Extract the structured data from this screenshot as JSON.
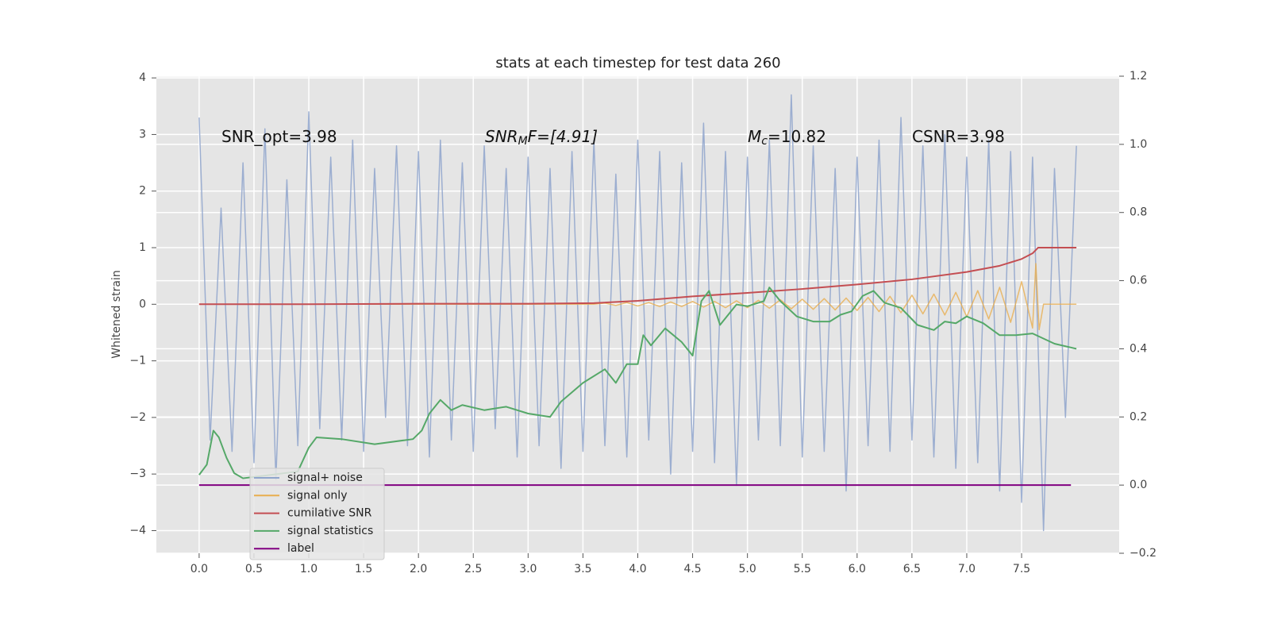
{
  "chart_data": {
    "type": "line",
    "title": "stats at each timestep for test data 260",
    "ylabel": "Whitened strain",
    "xlim": [
      -0.39,
      8.39
    ],
    "ylim": [
      -4.4,
      4.03
    ],
    "y2lim": [
      -0.2,
      1.2
    ],
    "xticks": [
      {
        "value": 0,
        "label": "0.0"
      },
      0.5,
      {
        "value": 1,
        "label": "1.0"
      },
      1.5,
      {
        "value": 2,
        "label": "2.0"
      },
      2.5,
      {
        "value": 3,
        "label": "3.0"
      },
      3.5,
      {
        "value": 4,
        "label": "4.0"
      },
      4.5,
      {
        "value": 5,
        "label": "5.0"
      },
      5.5,
      {
        "value": 6,
        "label": "6.0"
      },
      6.5,
      {
        "value": 7,
        "label": "7.0"
      },
      7.5
    ],
    "yticks": [
      {
        "value": -4,
        "label": "−4"
      },
      {
        "value": -3,
        "label": "−3"
      },
      {
        "value": -2,
        "label": "−2"
      },
      {
        "value": -1,
        "label": "−1"
      },
      0,
      1,
      2,
      3,
      4
    ],
    "y2ticks": [
      {
        "value": -0.2,
        "label": "−0.2"
      },
      {
        "value": 0,
        "label": "0.0"
      },
      0.2,
      0.4,
      0.6,
      0.8,
      {
        "value": 1,
        "label": "1.0"
      },
      1.2
    ],
    "grid": true,
    "legend": "lower left",
    "annotations": [
      {
        "parts": [
          "SNR_opt=3.98"
        ]
      },
      {
        "parts": [
          "SNR",
          "M",
          "F=[4.91]"
        ]
      },
      {
        "parts": [
          "M",
          "c",
          "=10.82"
        ]
      },
      {
        "parts": [
          "CSNR=3.98"
        ]
      }
    ],
    "series": [
      {
        "name": "signal+ noise",
        "color": "#8fa5cc",
        "x": [
          0,
          0.1,
          0.2,
          0.3,
          0.4,
          0.5,
          0.6,
          0.7,
          0.8,
          0.9,
          1,
          1.1,
          1.2,
          1.3,
          1.4,
          1.5,
          1.6,
          1.7,
          1.8,
          1.9,
          2,
          2.1,
          2.2,
          2.3,
          2.4,
          2.5,
          2.6,
          2.7,
          2.8,
          2.9,
          3,
          3.1,
          3.2,
          3.3,
          3.4,
          3.5,
          3.6,
          3.7,
          3.8,
          3.9,
          4,
          4.1,
          4.2,
          4.3,
          4.4,
          4.5,
          4.6,
          4.7,
          4.8,
          4.9,
          5,
          5.1,
          5.2,
          5.3,
          5.4,
          5.5,
          5.6,
          5.7,
          5.8,
          5.9,
          6,
          6.1,
          6.2,
          6.3,
          6.4,
          6.5,
          6.6,
          6.7,
          6.8,
          6.9,
          7,
          7.1,
          7.2,
          7.3,
          7.4,
          7.5,
          7.6,
          7.7,
          7.8,
          7.9,
          8
        ],
        "values": [
          3.3,
          -2.4,
          1.7,
          -2.6,
          2.5,
          -2.8,
          3.1,
          -3.1,
          2.2,
          -2.5,
          3.4,
          -2.2,
          2.6,
          -2.4,
          2.9,
          -2.6,
          2.4,
          -2.0,
          2.8,
          -2.5,
          2.7,
          -2.7,
          2.9,
          -2.4,
          2.5,
          -2.6,
          2.8,
          -2.2,
          2.4,
          -2.7,
          2.6,
          -2.5,
          2.4,
          -2.9,
          2.7,
          -2.6,
          2.9,
          -2.5,
          2.3,
          -2.7,
          2.9,
          -2.4,
          2.7,
          -3.0,
          2.5,
          -2.6,
          3.2,
          -2.8,
          2.7,
          -3.2,
          2.6,
          -2.4,
          2.9,
          -2.5,
          3.7,
          -2.7,
          2.8,
          -2.6,
          2.4,
          -3.3,
          2.6,
          -2.5,
          2.9,
          -2.6,
          3.3,
          -2.4,
          2.8,
          -2.7,
          3.0,
          -2.9,
          2.6,
          -2.8,
          2.9,
          -3.3,
          2.7,
          -3.5,
          2.6,
          -4.0,
          2.4,
          -2.0,
          2.8
        ]
      },
      {
        "name": "signal only",
        "color": "#e8ae4f",
        "x": [
          0,
          3.6,
          3.7,
          3.8,
          3.9,
          4,
          4.1,
          4.2,
          4.3,
          4.4,
          4.5,
          4.6,
          4.7,
          4.8,
          4.9,
          5,
          5.1,
          5.2,
          5.3,
          5.4,
          5.5,
          5.6,
          5.7,
          5.8,
          5.9,
          6,
          6.1,
          6.2,
          6.3,
          6.4,
          6.5,
          6.6,
          6.7,
          6.8,
          6.9,
          7,
          7.1,
          7.2,
          7.3,
          7.4,
          7.5,
          7.6,
          7.63,
          7.66,
          7.7,
          8
        ],
        "values": [
          0,
          0,
          0.02,
          -0.02,
          0.03,
          -0.03,
          0.03,
          -0.04,
          0.04,
          -0.04,
          0.05,
          -0.05,
          0.05,
          -0.06,
          0.06,
          -0.06,
          0.07,
          -0.07,
          0.08,
          -0.08,
          0.09,
          -0.09,
          0.1,
          -0.1,
          0.11,
          -0.11,
          0.12,
          -0.13,
          0.14,
          -0.15,
          0.16,
          -0.17,
          0.18,
          -0.19,
          0.21,
          -0.22,
          0.24,
          -0.26,
          0.3,
          -0.32,
          0.4,
          -0.42,
          0.72,
          -0.45,
          0,
          0
        ]
      },
      {
        "name": "cumilative SNR",
        "color": "#c44e52",
        "x": [
          0,
          1,
          2,
          3,
          3.6,
          4,
          4.5,
          5,
          5.5,
          6,
          6.5,
          7,
          7.3,
          7.5,
          7.6,
          7.65,
          8
        ],
        "values": [
          0,
          0,
          0.01,
          0.01,
          0.02,
          0.06,
          0.14,
          0.2,
          0.27,
          0.35,
          0.44,
          0.57,
          0.68,
          0.8,
          0.9,
          1.0,
          1.0
        ]
      },
      {
        "name": "signal statistics",
        "color": "#55a868",
        "axis": "y2",
        "x": [
          0,
          0.07,
          0.13,
          0.18,
          0.25,
          0.32,
          0.4,
          0.9,
          1,
          1.07,
          1.3,
          1.6,
          1.95,
          2.03,
          2.1,
          2.2,
          2.3,
          2.4,
          2.6,
          2.8,
          3,
          3.2,
          3.3,
          3.5,
          3.7,
          3.8,
          3.9,
          4,
          4.05,
          4.12,
          4.25,
          4.4,
          4.5,
          4.58,
          4.65,
          4.75,
          4.9,
          5,
          5.15,
          5.2,
          5.3,
          5.45,
          5.6,
          5.75,
          5.85,
          5.95,
          6.05,
          6.15,
          6.25,
          6.4,
          6.55,
          6.7,
          6.8,
          6.9,
          7,
          7.15,
          7.3,
          7.45,
          7.6,
          7.8,
          8
        ],
        "values": [
          0.03,
          0.06,
          0.16,
          0.14,
          0.08,
          0.035,
          0.02,
          0.04,
          0.11,
          0.14,
          0.135,
          0.12,
          0.135,
          0.16,
          0.21,
          0.25,
          0.22,
          0.235,
          0.22,
          0.23,
          0.21,
          0.2,
          0.245,
          0.3,
          0.34,
          0.3,
          0.355,
          0.355,
          0.44,
          0.41,
          0.46,
          0.42,
          0.38,
          0.54,
          0.57,
          0.47,
          0.53,
          0.525,
          0.54,
          0.58,
          0.54,
          0.495,
          0.48,
          0.48,
          0.5,
          0.51,
          0.555,
          0.57,
          0.535,
          0.52,
          0.47,
          0.455,
          0.48,
          0.475,
          0.495,
          0.475,
          0.44,
          0.44,
          0.445,
          0.415,
          0.4
        ]
      },
      {
        "name": "label",
        "color": "#800080",
        "axis": "y2",
        "x": [
          0,
          7.95
        ],
        "values": [
          0,
          0
        ]
      }
    ]
  }
}
